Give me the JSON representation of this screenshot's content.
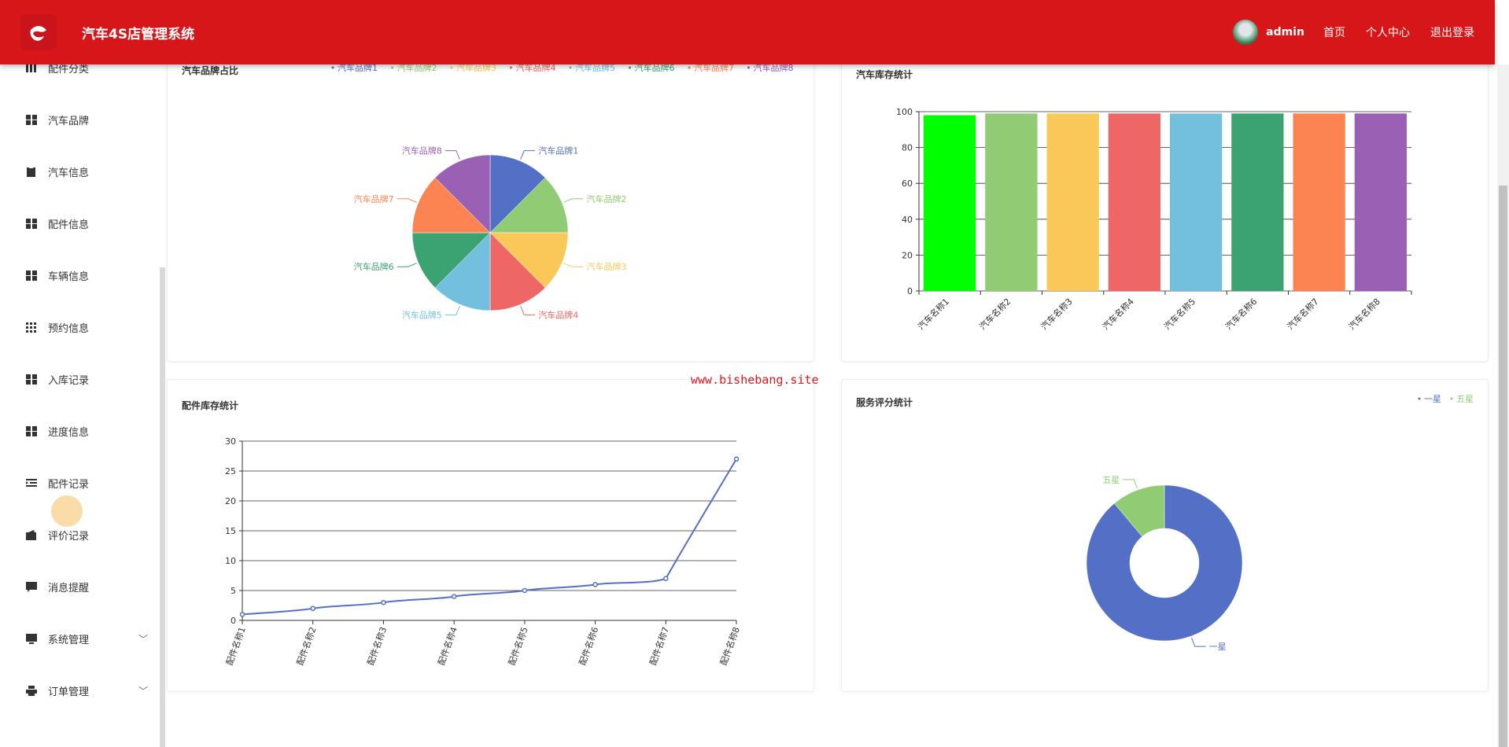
{
  "header": {
    "title": "汽车4S店管理系统",
    "user": "admin",
    "links": [
      "首页",
      "个人中心",
      "退出登录"
    ],
    "bg_color": "#d7161a"
  },
  "sidebar": {
    "items": [
      {
        "label": "配件分类",
        "icon": "columns-icon"
      },
      {
        "label": "汽车品牌",
        "icon": "grid-icon"
      },
      {
        "label": "汽车信息",
        "icon": "clipboard-icon"
      },
      {
        "label": "配件信息",
        "icon": "grid-icon"
      },
      {
        "label": "车辆信息",
        "icon": "grid-icon"
      },
      {
        "label": "预约信息",
        "icon": "apps-icon"
      },
      {
        "label": "入库记录",
        "icon": "grid-icon"
      },
      {
        "label": "进度信息",
        "icon": "grid-icon"
      },
      {
        "label": "配件记录",
        "icon": "list-indent-icon"
      },
      {
        "label": "评价记录",
        "icon": "wallet-icon"
      },
      {
        "label": "消息提醒",
        "icon": "chat-icon"
      },
      {
        "label": "系统管理",
        "icon": "monitor-icon",
        "expandable": true
      },
      {
        "label": "订单管理",
        "icon": "printer-icon",
        "expandable": true
      }
    ]
  },
  "watermark": "www.bishebang.site",
  "chart_data": [
    {
      "type": "pie",
      "title": "汽车品牌占比",
      "legend_position": "top-right",
      "categories": [
        "汽车品牌1",
        "汽车品牌2",
        "汽车品牌3",
        "汽车品牌4",
        "汽车品牌5",
        "汽车品牌6",
        "汽车品牌7",
        "汽车品牌8"
      ],
      "values": [
        1,
        1,
        1,
        1,
        1,
        1,
        1,
        1
      ],
      "colors": [
        "#5470c6",
        "#91cc75",
        "#fac858",
        "#ee6666",
        "#73c0de",
        "#3ba272",
        "#fc8452",
        "#9a60b4"
      ]
    },
    {
      "type": "bar",
      "title": "汽车库存统计",
      "categories": [
        "汽车名称1",
        "汽车名称2",
        "汽车名称3",
        "汽车名称4",
        "汽车名称5",
        "汽车名称6",
        "汽车名称7",
        "汽车名称8"
      ],
      "values": [
        98,
        99,
        99,
        99,
        99,
        99,
        99,
        99
      ],
      "ylim": [
        0,
        100
      ],
      "yticks": [
        0,
        20,
        40,
        60,
        80,
        100
      ],
      "grid": true,
      "colors": [
        "#00ff00",
        "#91cc75",
        "#fac858",
        "#ee6666",
        "#73c0de",
        "#3ba272",
        "#fc8452",
        "#9a60b4"
      ]
    },
    {
      "type": "line",
      "title": "配件库存统计",
      "categories": [
        "配件名称1",
        "配件名称2",
        "配件名称3",
        "配件名称4",
        "配件名称5",
        "配件名称6",
        "配件名称7",
        "配件名称8"
      ],
      "values": [
        1,
        2,
        3,
        4,
        5,
        6,
        7,
        27
      ],
      "ylim": [
        0,
        30
      ],
      "yticks": [
        0,
        5,
        10,
        15,
        20,
        25,
        30
      ],
      "grid": true,
      "smooth": true,
      "color": "#5470c6"
    },
    {
      "type": "pie",
      "title": "服务评分统计",
      "donut": true,
      "legend_position": "top-right",
      "categories": [
        "一星",
        "五星"
      ],
      "values": [
        8,
        1
      ],
      "colors": [
        "#5470c6",
        "#91cc75"
      ]
    }
  ]
}
